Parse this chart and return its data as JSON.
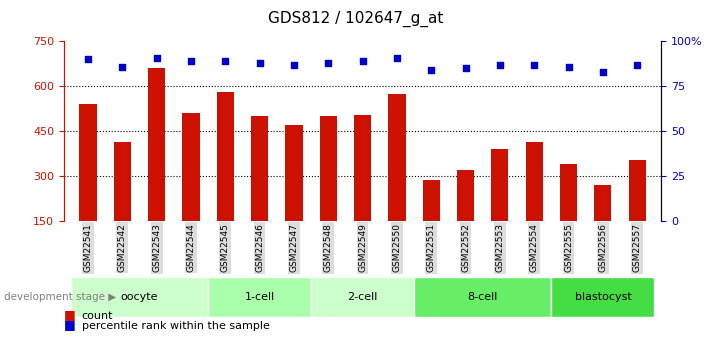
{
  "title": "GDS812 / 102647_g_at",
  "samples": [
    "GSM22541",
    "GSM22542",
    "GSM22543",
    "GSM22544",
    "GSM22545",
    "GSM22546",
    "GSM22547",
    "GSM22548",
    "GSM22549",
    "GSM22550",
    "GSM22551",
    "GSM22552",
    "GSM22553",
    "GSM22554",
    "GSM22555",
    "GSM22556",
    "GSM22557"
  ],
  "counts": [
    540,
    415,
    660,
    510,
    580,
    500,
    470,
    500,
    505,
    575,
    285,
    320,
    390,
    415,
    340,
    270,
    355
  ],
  "percentiles": [
    90,
    86,
    91,
    89,
    89,
    88,
    87,
    88,
    89,
    91,
    84,
    85,
    87,
    87,
    86,
    83,
    87
  ],
  "bar_color": "#cc1100",
  "dot_color": "#0000cc",
  "ylim_left": [
    150,
    750
  ],
  "ylim_right": [
    0,
    100
  ],
  "yticks_left": [
    150,
    300,
    450,
    600,
    750
  ],
  "yticks_right": [
    0,
    25,
    50,
    75,
    100
  ],
  "yticklabels_right": [
    "0",
    "25",
    "50",
    "75",
    "100%"
  ],
  "gridlines": [
    300,
    450,
    600
  ],
  "stages": [
    {
      "label": "oocyte",
      "start": 0,
      "end": 3,
      "color": "#ccffcc"
    },
    {
      "label": "1-cell",
      "start": 4,
      "end": 6,
      "color": "#aaffaa"
    },
    {
      "label": "2-cell",
      "start": 7,
      "end": 9,
      "color": "#ccffcc"
    },
    {
      "label": "8-cell",
      "start": 10,
      "end": 13,
      "color": "#66ee66"
    },
    {
      "label": "blastocyst",
      "start": 14,
      "end": 16,
      "color": "#44dd44"
    }
  ],
  "legend_count_color": "#cc1100",
  "legend_dot_color": "#0000cc",
  "dev_stage_label": "development stage",
  "xlabel_bg": "#dddddd",
  "bar_width": 0.5
}
